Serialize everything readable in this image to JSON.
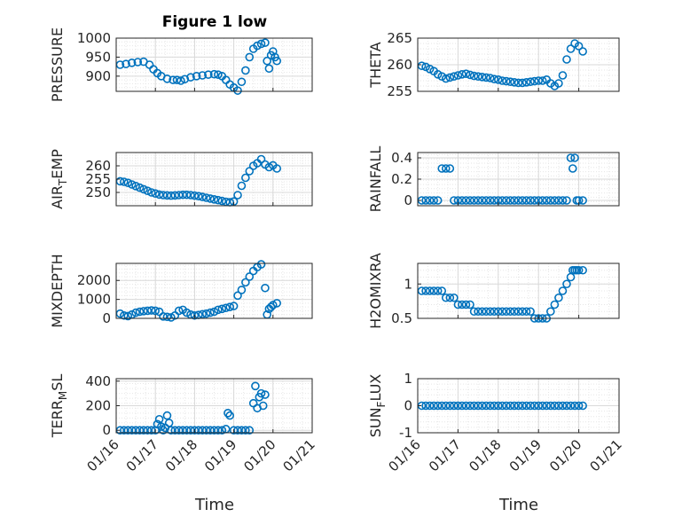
{
  "figure": {
    "title": "Figure 1 low",
    "xlabel": "Time"
  },
  "colors": {
    "marker": "#0072BD",
    "axis": "#262626",
    "grid": "#d9d9d9",
    "minor_grid": "#e6e6e6"
  },
  "chart_data": [
    {
      "type": "scatter",
      "name": "PRESSURE",
      "ylabel": "PRESSURE",
      "title": "Figure 1 low",
      "ylim": [
        860,
        1000
      ],
      "yticks": [
        900,
        950,
        1000
      ],
      "xlim": [
        16,
        21
      ],
      "xticks": [
        "01/16",
        "01/17",
        "01/18",
        "01/19",
        "01/20",
        "01/21"
      ],
      "minor_grid": true,
      "marker": "open-circle",
      "x": [
        16.1,
        16.25,
        16.4,
        16.55,
        16.7,
        16.85,
        16.95,
        17.05,
        17.15,
        17.3,
        17.45,
        17.55,
        17.65,
        17.75,
        17.9,
        18.05,
        18.2,
        18.35,
        18.5,
        18.6,
        18.7,
        18.8,
        18.9,
        19.0,
        19.1,
        19.2,
        19.3,
        19.4,
        19.5,
        19.6,
        19.7,
        19.8,
        19.85,
        19.9,
        19.95,
        20.0,
        20.05,
        20.1
      ],
      "y": [
        930,
        932,
        935,
        937,
        938,
        930,
        918,
        908,
        900,
        893,
        890,
        890,
        888,
        892,
        897,
        900,
        902,
        904,
        905,
        904,
        900,
        890,
        878,
        870,
        862,
        885,
        915,
        950,
        972,
        980,
        985,
        988,
        940,
        920,
        955,
        965,
        950,
        940
      ]
    },
    {
      "type": "scatter",
      "name": "THETA",
      "ylabel": "THETA",
      "ylim": [
        255,
        265
      ],
      "yticks": [
        255,
        260,
        265
      ],
      "xlim": [
        16,
        21
      ],
      "xticks": [
        "01/16",
        "01/17",
        "01/18",
        "01/19",
        "01/20",
        "01/21"
      ],
      "minor_grid": true,
      "marker": "open-circle",
      "x": [
        16.1,
        16.2,
        16.3,
        16.4,
        16.5,
        16.6,
        16.7,
        16.8,
        16.9,
        17.0,
        17.1,
        17.2,
        17.3,
        17.4,
        17.5,
        17.6,
        17.7,
        17.8,
        17.9,
        18.0,
        18.1,
        18.2,
        18.3,
        18.4,
        18.5,
        18.6,
        18.7,
        18.8,
        18.9,
        19.0,
        19.1,
        19.2,
        19.3,
        19.4,
        19.5,
        19.6,
        19.7,
        19.8,
        19.9,
        20.0,
        20.1
      ],
      "y": [
        259.8,
        259.6,
        259.2,
        258.8,
        258.2,
        257.8,
        257.4,
        257.6,
        257.8,
        258.0,
        258.2,
        258.3,
        258.1,
        257.9,
        257.8,
        257.7,
        257.6,
        257.5,
        257.3,
        257.2,
        257.0,
        256.9,
        256.8,
        256.7,
        256.6,
        256.6,
        256.7,
        256.8,
        256.9,
        257.0,
        257.0,
        257.2,
        256.5,
        256.0,
        256.5,
        258.0,
        261.0,
        263.0,
        264.0,
        263.5,
        262.5
      ]
    },
    {
      "type": "scatter",
      "name": "AIR_TEMP",
      "ylabel": "AIR_TEMP",
      "ylim": [
        245,
        265
      ],
      "yticks": [
        250,
        255,
        260
      ],
      "xlim": [
        16,
        21
      ],
      "xticks": [
        "01/16",
        "01/17",
        "01/18",
        "01/19",
        "01/20",
        "01/21"
      ],
      "minor_grid": true,
      "marker": "open-circle",
      "x": [
        16.1,
        16.2,
        16.3,
        16.4,
        16.5,
        16.6,
        16.7,
        16.8,
        16.9,
        17.0,
        17.1,
        17.2,
        17.3,
        17.4,
        17.5,
        17.6,
        17.7,
        17.8,
        17.9,
        18.0,
        18.1,
        18.2,
        18.3,
        18.4,
        18.5,
        18.6,
        18.7,
        18.8,
        18.9,
        19.0,
        19.1,
        19.2,
        19.3,
        19.4,
        19.5,
        19.6,
        19.7,
        19.8,
        19.9,
        20.0,
        20.1
      ],
      "y": [
        254.2,
        254.0,
        253.6,
        253.0,
        252.4,
        251.8,
        251.2,
        250.6,
        250.0,
        249.6,
        249.2,
        249.0,
        248.9,
        248.8,
        248.9,
        249.0,
        249.1,
        249.1,
        249.0,
        248.8,
        248.6,
        248.3,
        248.0,
        247.7,
        247.4,
        247.1,
        246.8,
        246.5,
        246.3,
        246.6,
        249.0,
        252.5,
        255.5,
        258.0,
        260.0,
        261.0,
        262.5,
        260.5,
        259.5,
        260.2,
        259.0
      ]
    },
    {
      "type": "scatter",
      "name": "RAINFALL",
      "ylabel": "RAINFALL",
      "ylim": [
        -0.05,
        0.45
      ],
      "yticks": [
        0,
        0.2,
        0.4
      ],
      "xlim": [
        16,
        21
      ],
      "xticks": [
        "01/16",
        "01/17",
        "01/18",
        "01/19",
        "01/20",
        "01/21"
      ],
      "minor_grid": true,
      "marker": "open-circle",
      "x": [
        16.1,
        16.2,
        16.3,
        16.4,
        16.5,
        16.6,
        16.7,
        16.8,
        16.9,
        17.0,
        17.1,
        17.2,
        17.3,
        17.4,
        17.5,
        17.6,
        17.7,
        17.8,
        17.9,
        18.0,
        18.1,
        18.2,
        18.3,
        18.4,
        18.5,
        18.6,
        18.7,
        18.8,
        18.9,
        19.0,
        19.1,
        19.2,
        19.3,
        19.4,
        19.5,
        19.6,
        19.7,
        19.8,
        19.85,
        19.9,
        19.95,
        20.0,
        20.1
      ],
      "y": [
        0,
        0,
        0,
        0,
        0,
        0.3,
        0.3,
        0.3,
        0,
        0,
        0,
        0,
        0,
        0,
        0,
        0,
        0,
        0,
        0,
        0,
        0,
        0,
        0,
        0,
        0,
        0,
        0,
        0,
        0,
        0,
        0,
        0,
        0,
        0,
        0,
        0,
        0,
        0.4,
        0.3,
        0.4,
        0,
        0,
        0
      ]
    },
    {
      "type": "scatter",
      "name": "MIXDEPTH",
      "ylabel": "MIXDEPTH",
      "ylim": [
        0,
        2900
      ],
      "yticks": [
        0,
        1000,
        2000
      ],
      "xlim": [
        16,
        21
      ],
      "xticks": [
        "01/16",
        "01/17",
        "01/18",
        "01/19",
        "01/20",
        "01/21"
      ],
      "minor_grid": true,
      "marker": "open-circle",
      "x": [
        16.1,
        16.2,
        16.3,
        16.4,
        16.5,
        16.6,
        16.7,
        16.8,
        16.9,
        17.0,
        17.1,
        17.2,
        17.3,
        17.4,
        17.5,
        17.6,
        17.7,
        17.8,
        17.9,
        18.0,
        18.1,
        18.2,
        18.3,
        18.4,
        18.5,
        18.6,
        18.7,
        18.8,
        18.9,
        19.0,
        19.1,
        19.2,
        19.3,
        19.4,
        19.5,
        19.6,
        19.7,
        19.8,
        19.85,
        19.9,
        19.95,
        20.0,
        20.1
      ],
      "y": [
        250,
        150,
        120,
        200,
        300,
        350,
        380,
        400,
        420,
        400,
        350,
        100,
        80,
        50,
        150,
        400,
        450,
        300,
        200,
        150,
        180,
        220,
        250,
        300,
        350,
        450,
        500,
        550,
        600,
        650,
        1200,
        1500,
        1900,
        2200,
        2500,
        2700,
        2850,
        1600,
        200,
        500,
        600,
        700,
        800
      ]
    },
    {
      "type": "scatter",
      "name": "H2OMIXRA",
      "ylabel": "H2OMIXRA",
      "ylim": [
        0.5,
        1.3
      ],
      "yticks": [
        0.5,
        1
      ],
      "xlim": [
        16,
        21
      ],
      "xticks": [
        "01/16",
        "01/17",
        "01/18",
        "01/19",
        "01/20",
        "01/21"
      ],
      "minor_grid": true,
      "marker": "open-circle",
      "x": [
        16.1,
        16.2,
        16.3,
        16.4,
        16.5,
        16.6,
        16.7,
        16.8,
        16.9,
        17.0,
        17.1,
        17.2,
        17.3,
        17.4,
        17.5,
        17.6,
        17.7,
        17.8,
        17.9,
        18.0,
        18.1,
        18.2,
        18.3,
        18.4,
        18.5,
        18.6,
        18.7,
        18.8,
        18.9,
        19.0,
        19.1,
        19.2,
        19.3,
        19.4,
        19.5,
        19.6,
        19.7,
        19.8,
        19.85,
        19.9,
        19.95,
        20.0,
        20.1
      ],
      "y": [
        0.9,
        0.9,
        0.9,
        0.9,
        0.9,
        0.9,
        0.8,
        0.8,
        0.8,
        0.7,
        0.7,
        0.7,
        0.7,
        0.6,
        0.6,
        0.6,
        0.6,
        0.6,
        0.6,
        0.6,
        0.6,
        0.6,
        0.6,
        0.6,
        0.6,
        0.6,
        0.6,
        0.6,
        0.5,
        0.5,
        0.5,
        0.5,
        0.6,
        0.7,
        0.8,
        0.9,
        1.0,
        1.1,
        1.2,
        1.2,
        1.2,
        1.2,
        1.2
      ]
    },
    {
      "type": "scatter",
      "name": "TERR_MSL",
      "ylabel": "TERR_MSL",
      "ylim": [
        -20,
        420
      ],
      "yticks": [
        0,
        200,
        400
      ],
      "xlim": [
        16,
        21
      ],
      "xticks": [
        "01/16",
        "01/17",
        "01/18",
        "01/19",
        "01/20",
        "01/21"
      ],
      "minor_grid": true,
      "marker": "open-circle",
      "x": [
        16.1,
        16.2,
        16.3,
        16.4,
        16.5,
        16.6,
        16.7,
        16.8,
        16.9,
        17.0,
        17.05,
        17.1,
        17.15,
        17.2,
        17.25,
        17.3,
        17.35,
        17.4,
        17.5,
        17.6,
        17.7,
        17.8,
        17.9,
        18.0,
        18.1,
        18.2,
        18.3,
        18.4,
        18.5,
        18.6,
        18.7,
        18.8,
        18.85,
        18.9,
        19.0,
        19.1,
        19.2,
        19.3,
        19.4,
        19.5,
        19.55,
        19.6,
        19.65,
        19.7,
        19.75,
        19.8
      ],
      "y": [
        0,
        0,
        0,
        0,
        0,
        0,
        0,
        0,
        0,
        0,
        50,
        90,
        30,
        0,
        20,
        120,
        60,
        0,
        0,
        0,
        0,
        0,
        0,
        0,
        0,
        0,
        0,
        0,
        0,
        0,
        0,
        10,
        140,
        120,
        0,
        0,
        0,
        0,
        0,
        220,
        360,
        180,
        270,
        300,
        200,
        290
      ]
    },
    {
      "type": "scatter",
      "name": "SUN_FLUX",
      "ylabel": "SUN_FLUX",
      "ylim": [
        -1,
        1
      ],
      "yticks": [
        -1,
        0,
        1
      ],
      "xlim": [
        16,
        21
      ],
      "xticks": [
        "01/16",
        "01/17",
        "01/18",
        "01/19",
        "01/20",
        "01/21"
      ],
      "minor_grid": true,
      "marker": "open-circle",
      "x": [
        16.1,
        16.2,
        16.3,
        16.4,
        16.5,
        16.6,
        16.7,
        16.8,
        16.9,
        17.0,
        17.1,
        17.2,
        17.3,
        17.4,
        17.5,
        17.6,
        17.7,
        17.8,
        17.9,
        18.0,
        18.1,
        18.2,
        18.3,
        18.4,
        18.5,
        18.6,
        18.7,
        18.8,
        18.9,
        19.0,
        19.1,
        19.2,
        19.3,
        19.4,
        19.5,
        19.6,
        19.7,
        19.8,
        19.9,
        20.0,
        20.1
      ],
      "y": [
        0,
        0,
        0,
        0,
        0,
        0,
        0,
        0,
        0,
        0,
        0,
        0,
        0,
        0,
        0,
        0,
        0,
        0,
        0,
        0,
        0,
        0,
        0,
        0,
        0,
        0,
        0,
        0,
        0,
        0,
        0,
        0,
        0,
        0,
        0,
        0,
        0,
        0,
        0,
        0,
        0
      ]
    }
  ]
}
